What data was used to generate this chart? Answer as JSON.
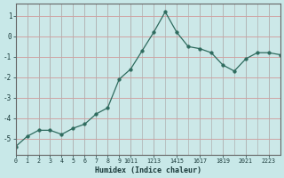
{
  "x": [
    0,
    1,
    2,
    3,
    4,
    5,
    6,
    7,
    8,
    9,
    10,
    11,
    12,
    13,
    14,
    15,
    16,
    17,
    18,
    19,
    20,
    21,
    22,
    23
  ],
  "y": [
    -5.4,
    -4.9,
    -4.6,
    -4.6,
    -4.8,
    -4.5,
    -4.3,
    -3.8,
    -3.5,
    -2.1,
    -1.6,
    -0.7,
    0.2,
    1.2,
    0.2,
    -0.5,
    -0.6,
    -0.8,
    -1.4,
    -1.7,
    -1.1,
    -0.8,
    -0.8,
    -0.9
  ],
  "xlabel": "Humidex (Indice chaleur)",
  "ylim": [
    -5.8,
    1.6
  ],
  "xlim": [
    0,
    23
  ],
  "yticks": [
    1,
    0,
    -1,
    -2,
    -3,
    -4,
    -5
  ],
  "xtick_labels": [
    "0",
    "1",
    "2",
    "3",
    "4",
    "5",
    "6",
    "7",
    "8",
    "9",
    "1011",
    "1213",
    "1415",
    "1617",
    "1819",
    "2021",
    "2223"
  ],
  "line_color": "#2e6b5e",
  "marker": "o",
  "marker_size": 2.5,
  "bg_color": "#c8e8e8",
  "grid_color": "#b0b0b0",
  "grid_color_h": "#d0a0a0",
  "ax_bg_color": "#cce8e8"
}
